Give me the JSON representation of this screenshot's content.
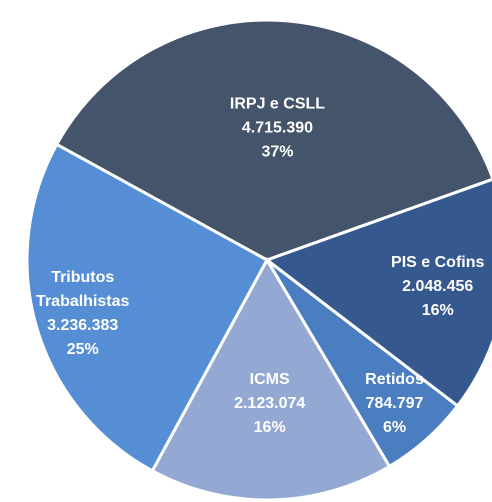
{
  "chart_data": {
    "type": "pie",
    "categories": [
      "IRPJ e CSLL",
      "PIS e Cofins",
      "Retidos",
      "ICMS",
      "Tributos Trabalhistas"
    ],
    "values": [
      4715390,
      2048456,
      784797,
      2123074,
      3236383
    ],
    "value_labels": [
      "4.715.390",
      "2.048.456",
      "784.797",
      "2.123.074",
      "3.236.383"
    ],
    "percents": [
      37,
      16,
      6,
      16,
      25
    ],
    "percent_labels": [
      "37%",
      "16%",
      "6%",
      "16%",
      "25%"
    ],
    "colors": [
      "#44546a",
      "#35598f",
      "#4a7ec0",
      "#94a8d4",
      "#558ed5"
    ]
  }
}
